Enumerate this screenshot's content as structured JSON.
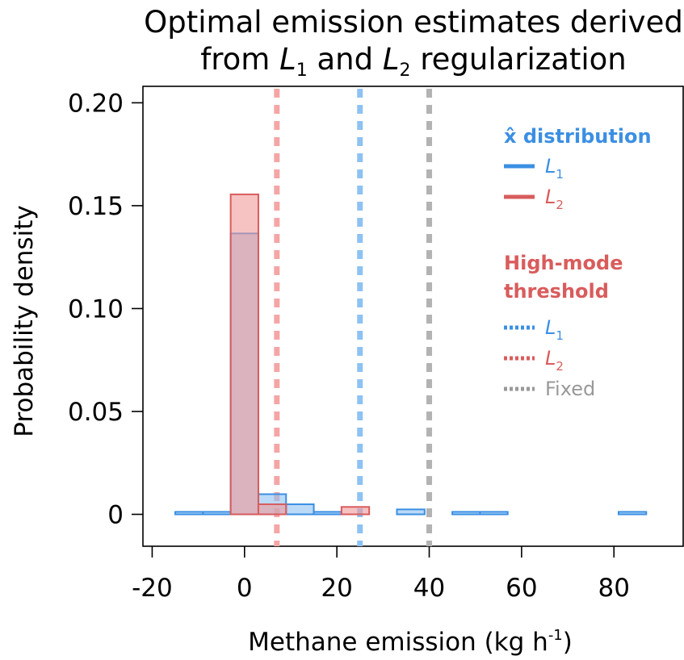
{
  "chart_data": {
    "type": "bar",
    "title_line1": "Optimal emission estimates derived",
    "title_line2_pre": "from ",
    "title_l1": "L",
    "title_l1_sub": "1",
    "title_mid": " and ",
    "title_l2": "L",
    "title_l2_sub": "2",
    "title_line2_post": " regularization",
    "xlabel_pre": "Methane emission (kg h",
    "xlabel_sup": "-1",
    "xlabel_post": ")",
    "ylabel": "Probability density",
    "xlim": [
      -22,
      95
    ],
    "ylim": [
      -0.0155,
      0.208
    ],
    "xticks": [
      -20,
      0,
      20,
      40,
      60,
      80
    ],
    "xtick_labels": [
      "-20",
      "0",
      "20",
      "40",
      "60",
      "80"
    ],
    "yticks": [
      0,
      0.05,
      0.1,
      0.15,
      0.2
    ],
    "ytick_labels": [
      "0",
      "0.05",
      "0.10",
      "0.15",
      "0.20"
    ],
    "bin_width": 6,
    "series": [
      {
        "name": "L1",
        "color": "#3B8FE3",
        "fill": "#8EC2F2",
        "bin_starts": [
          -15,
          -9,
          -3,
          3,
          9,
          15,
          21,
          27,
          33,
          39,
          45,
          51,
          57,
          63,
          69,
          75,
          81,
          87
        ],
        "values": [
          0.0012,
          0.0012,
          0.1365,
          0.0098,
          0.0049,
          0.0012,
          0.0,
          0.0,
          0.0024,
          0.0,
          0.0012,
          0.0012,
          0.0,
          0.0,
          0.0,
          0.0,
          0.0012,
          0.0
        ]
      },
      {
        "name": "L2",
        "color": "#D95C5C",
        "fill": "#F09A9A",
        "bin_starts": [
          -21,
          -15,
          -9,
          -3,
          3,
          9,
          15,
          21,
          27,
          33,
          39,
          45,
          51,
          57,
          63,
          69,
          75,
          81,
          87
        ],
        "values": [
          0.0,
          0.0,
          0.0,
          0.1555,
          0.0049,
          0.0,
          0.0,
          0.0036,
          0.0,
          0.0,
          0.0,
          0.0,
          0.0,
          0.0,
          0.0,
          0.0,
          0.0,
          0.0,
          0.0
        ]
      }
    ],
    "thresholds": [
      {
        "name": "L2",
        "x": 7,
        "color": "#F4A6A6"
      },
      {
        "name": "L1",
        "x": 25,
        "color": "#8EC2F2"
      },
      {
        "name": "Fixed",
        "x": 40,
        "color": "#B3B3B3"
      }
    ],
    "legend": {
      "title1": "x̂ distribution",
      "title1_color": "#3B8FE3",
      "dist_entries": [
        {
          "label": "L",
          "sub": "1",
          "color": "#3B8FE3"
        },
        {
          "label": "L",
          "sub": "2",
          "color": "#D95C5C"
        }
      ],
      "title2_line1": "High-mode",
      "title2_line2": "threshold",
      "title2_color": "#D95C5C",
      "thr_entries": [
        {
          "label": "L",
          "sub": "1",
          "color": "#3B8FE3",
          "line_color": "#3B8FE3"
        },
        {
          "label": "L",
          "sub": "2",
          "color": "#D95C5C",
          "line_color": "#D95C5C"
        },
        {
          "label": "Fixed",
          "sub": "",
          "color": "#999999",
          "line_color": "#999999"
        }
      ]
    }
  }
}
